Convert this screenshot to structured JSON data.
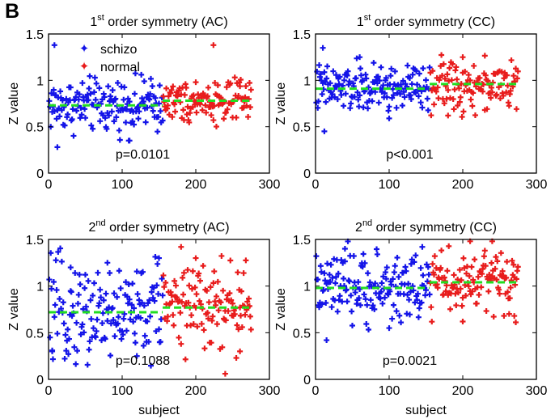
{
  "figure": {
    "panel_label": "B"
  },
  "chart_data": [
    {
      "type": "scatter",
      "title": {
        "ord": "1",
        "sup": "st",
        "rest": " order symmetry (AC)"
      },
      "xlabel": "",
      "ylabel": "Z value",
      "xlim": [
        0,
        300
      ],
      "ylim": [
        0,
        1.5
      ],
      "xticks": [
        0,
        100,
        200,
        300
      ],
      "yticks": [
        0,
        0.5,
        1,
        1.5
      ],
      "grid": false,
      "legend": {
        "placement": "top-left",
        "entries": [
          "schizo",
          "normal"
        ]
      },
      "series": [
        {
          "name": "schizo",
          "color": "#1414e8",
          "x_range": [
            1,
            155
          ],
          "center": 0.73,
          "spread": 0.13,
          "count": 155,
          "extremes": [
            [
              8,
              1.38
            ],
            [
              12,
              0.28
            ],
            [
              110,
              0.35
            ],
            [
              130,
              0.99
            ]
          ]
        },
        {
          "name": "normal",
          "color": "#e81c1c",
          "x_range": [
            156,
            275
          ],
          "center": 0.78,
          "spread": 0.1,
          "count": 120,
          "extremes": [
            [
              224,
              1.38
            ],
            [
              200,
              0.98
            ],
            [
              250,
              0.6
            ]
          ]
        }
      ],
      "means": [
        {
          "x": [
            0,
            155
          ],
          "y": 0.73
        },
        {
          "x": [
            155,
            275
          ],
          "y": 0.78
        }
      ],
      "mean_color": "#22dd22",
      "annotation": "p=0.0101"
    },
    {
      "type": "scatter",
      "title": {
        "ord": "1",
        "sup": "st",
        "rest": " order symmetry (CC)"
      },
      "xlabel": "",
      "ylabel": "Z value",
      "xlim": [
        0,
        300
      ],
      "ylim": [
        0,
        1.5
      ],
      "xticks": [
        0,
        100,
        200,
        300
      ],
      "yticks": [
        0,
        0.5,
        1,
        1.5
      ],
      "grid": false,
      "series": [
        {
          "name": "schizo",
          "color": "#1414e8",
          "x_range": [
            1,
            155
          ],
          "center": 0.91,
          "spread": 0.12,
          "count": 155,
          "extremes": [
            [
              12,
              0.45
            ],
            [
              10,
              1.35
            ],
            [
              100,
              0.59
            ],
            [
              60,
              1.25
            ]
          ]
        },
        {
          "name": "normal",
          "color": "#e81c1c",
          "x_range": [
            156,
            275
          ],
          "center": 0.96,
          "spread": 0.12,
          "count": 120,
          "extremes": [
            [
              180,
              0.62
            ],
            [
              230,
              0.68
            ],
            [
              200,
              1.25
            ]
          ]
        }
      ],
      "means": [
        {
          "x": [
            0,
            155
          ],
          "y": 0.91
        },
        {
          "x": [
            155,
            275
          ],
          "y": 0.96
        }
      ],
      "mean_color": "#22dd22",
      "annotation": "p<0.001"
    },
    {
      "type": "scatter",
      "title": {
        "ord": "2",
        "sup": "nd",
        "rest": " order symmetry (AC)"
      },
      "xlabel": "subject",
      "ylabel": "Z value",
      "xlim": [
        0,
        300
      ],
      "ylim": [
        0,
        1.5
      ],
      "xticks": [
        0,
        100,
        200,
        300
      ],
      "yticks": [
        0,
        0.5,
        1,
        1.5
      ],
      "grid": false,
      "series": [
        {
          "name": "schizo",
          "color": "#1414e8",
          "x_range": [
            1,
            155
          ],
          "center": 0.72,
          "spread": 0.24,
          "count": 155,
          "extremes": [
            [
              5,
              0.3
            ],
            [
              30,
              1.2
            ],
            [
              80,
              1.25
            ],
            [
              150,
              1.3
            ],
            [
              120,
              0.25
            ]
          ]
        },
        {
          "name": "normal",
          "color": "#e81c1c",
          "x_range": [
            156,
            275
          ],
          "center": 0.77,
          "spread": 0.22,
          "count": 120,
          "extremes": [
            [
              180,
              1.42
            ],
            [
              240,
              0.06
            ],
            [
              200,
              1.3
            ],
            [
              260,
              0.3
            ]
          ]
        }
      ],
      "means": [
        {
          "x": [
            0,
            155
          ],
          "y": 0.72
        },
        {
          "x": [
            155,
            275
          ],
          "y": 0.77
        }
      ],
      "mean_color": "#22dd22",
      "annotation": "p=0.1088"
    },
    {
      "type": "scatter",
      "title": {
        "ord": "2",
        "sup": "nd",
        "rest": " order symmetry (CC)"
      },
      "xlabel": "subject",
      "ylabel": "Z value",
      "xlim": [
        0,
        300
      ],
      "ylim": [
        0,
        1.5
      ],
      "xticks": [
        0,
        100,
        200,
        300
      ],
      "yticks": [
        0,
        0.5,
        1,
        1.5
      ],
      "grid": false,
      "series": [
        {
          "name": "schizo",
          "color": "#1414e8",
          "x_range": [
            1,
            155
          ],
          "center": 0.98,
          "spread": 0.17,
          "count": 155,
          "extremes": [
            [
              15,
              0.42
            ],
            [
              40,
              1.4
            ],
            [
              145,
              1.42
            ],
            [
              100,
              0.55
            ]
          ]
        },
        {
          "name": "normal",
          "color": "#e81c1c",
          "x_range": [
            156,
            275
          ],
          "center": 1.04,
          "spread": 0.16,
          "count": 120,
          "extremes": [
            [
              210,
              1.48
            ],
            [
              240,
              1.48
            ],
            [
              270,
              0.68
            ],
            [
              200,
              0.62
            ]
          ]
        }
      ],
      "means": [
        {
          "x": [
            0,
            155
          ],
          "y": 0.98
        },
        {
          "x": [
            155,
            275
          ],
          "y": 1.04
        }
      ],
      "mean_color": "#22dd22",
      "annotation": "p=0.0021"
    }
  ]
}
